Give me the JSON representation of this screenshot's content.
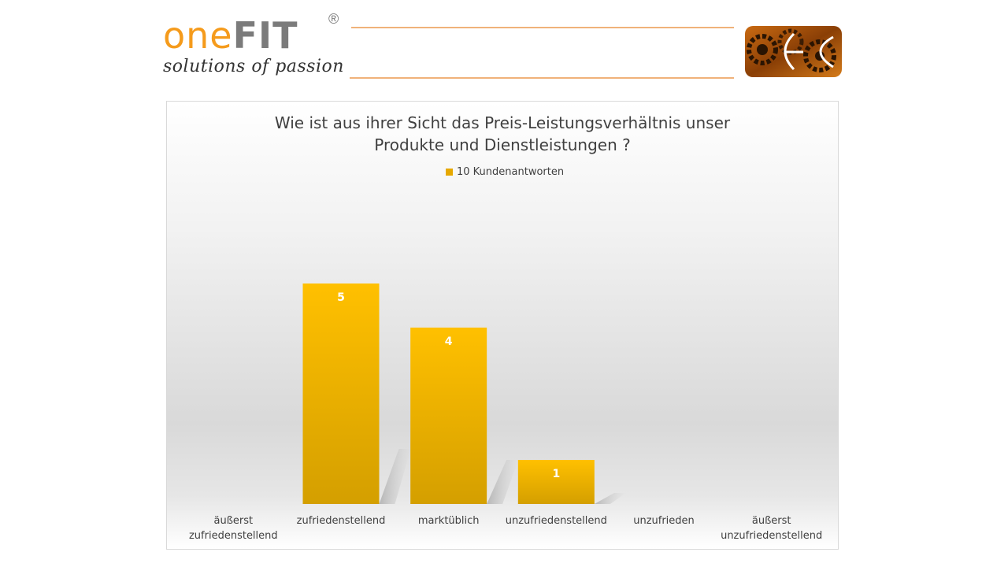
{
  "header": {
    "logo_left": {
      "word_one": "one",
      "word_fit": "FIT",
      "registered": "®",
      "tagline": "solutions of passion"
    },
    "logo_right": {
      "icon": "gears-logo-icon"
    },
    "colors": {
      "brand_orange": "#f59b1c",
      "brand_gray": "#7b7b7b",
      "rule": "#f0b27a"
    }
  },
  "chart": {
    "title_line1": "Wie ist aus ihrer Sicht das Preis-Leistungsverhältnis unser",
    "title_line2": "Produkte und Dienstleistungen ?",
    "legend_label": "10 Kundenantworten",
    "bar_color_top": "#ffc000",
    "bar_color_bottom": "#d49f00"
  },
  "chart_data": {
    "type": "bar",
    "title": "Wie ist aus ihrer Sicht das Preis-Leistungsverhältnis unser Produkte und Dienstleistungen ?",
    "categories": [
      [
        "äußerst",
        "zufriedenstellend"
      ],
      [
        "zufriedenstellend"
      ],
      [
        "marktüblich"
      ],
      [
        "unzufriedenstellend"
      ],
      [
        "unzufrieden"
      ],
      [
        "äußerst",
        "unzufriedenstellend"
      ]
    ],
    "series": [
      {
        "name": "10 Kundenantworten",
        "values": [
          null,
          5,
          4,
          1,
          null,
          null
        ]
      }
    ],
    "data_labels": [
      "",
      "5",
      "4",
      "1",
      "",
      ""
    ],
    "ylim": [
      0,
      7.5
    ],
    "grid": false,
    "legend_position": "top"
  }
}
